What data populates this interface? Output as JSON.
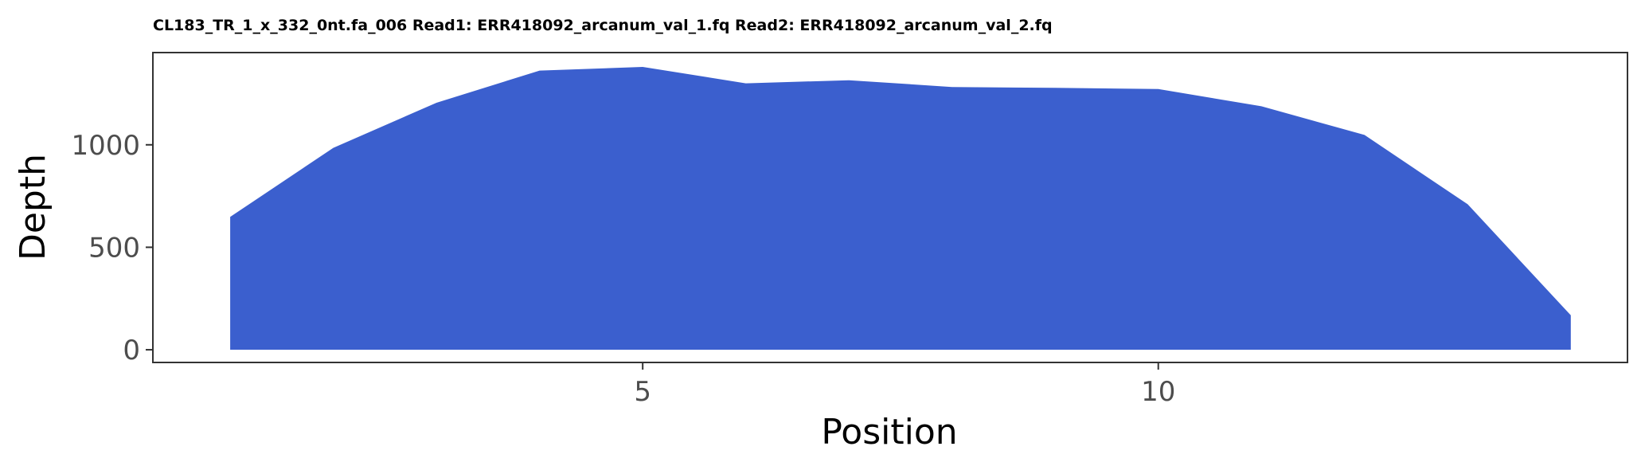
{
  "chart_data": {
    "type": "area",
    "title": "CL183_TR_1_x_332_0nt.fa_006 Read1: ERR418092_arcanum_val_1.fq Read2: ERR418092_arcanum_val_2.fq",
    "xlabel": "Position",
    "ylabel": "Depth",
    "x": [
      1,
      2,
      3,
      4,
      5,
      6,
      7,
      8,
      9,
      10,
      11,
      12,
      13,
      14
    ],
    "values": [
      648,
      985,
      1205,
      1362,
      1380,
      1300,
      1315,
      1282,
      1278,
      1272,
      1188,
      1048,
      710,
      168
    ],
    "xlim": [
      0.25,
      14.55
    ],
    "ylim": [
      -62,
      1450
    ],
    "xticks": [
      5,
      10
    ],
    "xtick_labels": [
      "5",
      "10"
    ],
    "yticks": [
      0,
      500,
      1000
    ],
    "ytick_labels": [
      "0",
      "500",
      "1000"
    ],
    "grid": false,
    "legend": "none",
    "colors": {
      "fill": "#3b5fce",
      "frame": "#333333",
      "tick": "#333333"
    }
  }
}
